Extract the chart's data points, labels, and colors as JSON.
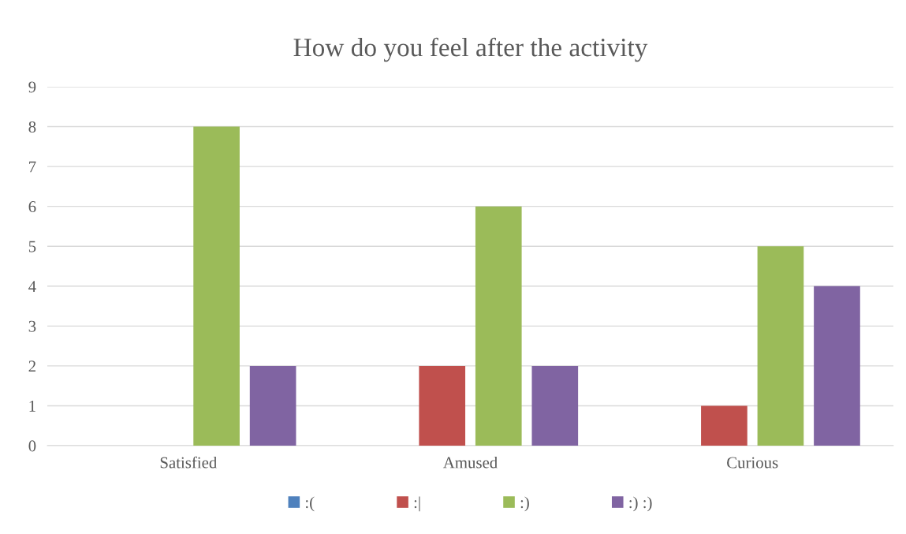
{
  "chart_data": {
    "type": "bar",
    "title": "How do you feel after the activity",
    "categories": [
      "Satisfied",
      "Amused",
      "Curious"
    ],
    "series": [
      {
        "name": ":(",
        "color": "#4f81bd",
        "values": [
          0,
          0,
          0
        ]
      },
      {
        "name": ":|",
        "color": "#c0504d",
        "values": [
          0,
          2,
          1
        ]
      },
      {
        "name": ":)",
        "color": "#9bbb59",
        "values": [
          8,
          6,
          5
        ]
      },
      {
        "name": ":) :)",
        "color": "#8064a2",
        "values": [
          2,
          2,
          4
        ]
      }
    ],
    "ylim": [
      0,
      9
    ],
    "yticks": [
      0,
      1,
      2,
      3,
      4,
      5,
      6,
      7,
      8,
      9
    ],
    "grid": "y",
    "legend": "bottom"
  }
}
